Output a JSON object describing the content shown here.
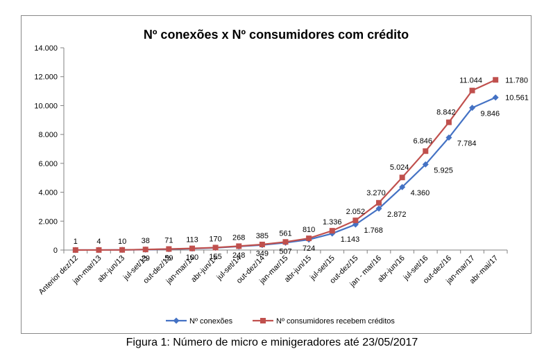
{
  "caption": "Figura 1: Número de micro e minigeradores até 23/05/2017",
  "colors": {
    "conexoes": "#4472C4",
    "consumidores": "#C0504D",
    "axis": "#808080",
    "frame": "#888888"
  },
  "chart_data": {
    "type": "line",
    "title": "Nº conexões x Nº consumidores com crédito",
    "xlabel": "",
    "ylabel": "",
    "ylim": [
      0,
      14000
    ],
    "yticks": [
      0,
      2000,
      4000,
      6000,
      8000,
      10000,
      12000,
      14000
    ],
    "ytick_labels": [
      "0",
      "2.000",
      "4.000",
      "6.000",
      "8.000",
      "10.000",
      "12.000",
      "14.000"
    ],
    "grid": false,
    "legend_position": "bottom",
    "categories": [
      "Anterior dez/12",
      "jan-mar/13",
      "abr-jun/13",
      "jul-set/13",
      "out-dez/13",
      "jan-mar/14",
      "abr-jun/14",
      "jul-set/14",
      "out-dez/14",
      "jan-mar/15",
      "abr-jun/15",
      "jul-set/15",
      "out-dez/15",
      "jan - mar/16",
      "abr-jun/16",
      "jul-set/16",
      "out-dez/16",
      "jan-mar/17",
      "abr-mai/17"
    ],
    "series": [
      {
        "name": "Nº conexões",
        "values": [
          1,
          4,
          10,
          29,
          59,
          100,
          155,
          248,
          349,
          507,
          724,
          1143,
          1768,
          2872,
          4360,
          5925,
          7784,
          9846,
          10561
        ],
        "labels": [
          "",
          "",
          "",
          "29",
          "59",
          "100",
          "155",
          "248",
          "349",
          "507",
          "724",
          "1.143",
          "1.768",
          "2.872",
          "4.360",
          "5.925",
          "7.784",
          "9.846",
          "10.561"
        ]
      },
      {
        "name": "Nº consumidores recebem créditos",
        "values": [
          1,
          4,
          10,
          38,
          71,
          113,
          170,
          268,
          385,
          561,
          810,
          1336,
          2052,
          3270,
          5024,
          6846,
          8842,
          11044,
          11780
        ],
        "labels": [
          "1",
          "4",
          "10",
          "38",
          "71",
          "113",
          "170",
          "268",
          "385",
          "561",
          "810",
          "1.336",
          "2.052",
          "3.270",
          "5.024",
          "6.846",
          "8.842",
          "11.044",
          "11.780"
        ]
      }
    ]
  }
}
